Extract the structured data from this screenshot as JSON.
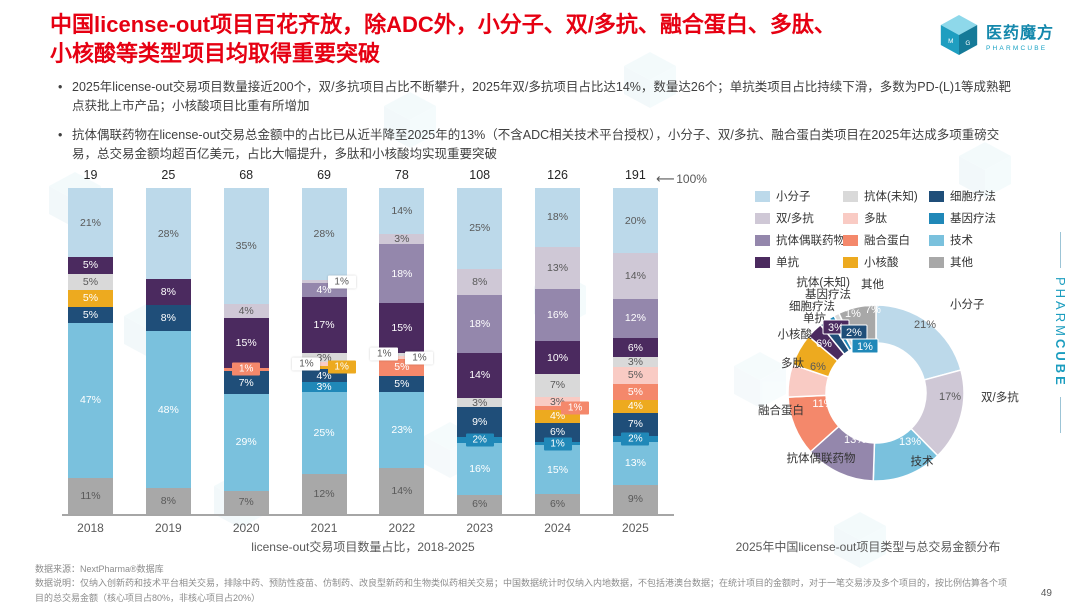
{
  "slide": {
    "title_line1": "中国license-out项目百花齐放，除ADC外，小分子、双/多抗、融合蛋白、多肽、",
    "title_line2": "小核酸等类型项目均取得重要突破",
    "title_color": "#e60012",
    "bullets": [
      "2025年license-out交易项目数量接近200个，双/多抗项目占比不断攀升，2025年双/多抗项目占比达14%，数量达26个；单抗类项目占比持续下滑，多数为PD-(L)1等成熟靶点获批上市产品；小核酸项目比重有所增加",
      "抗体偶联药物在license-out交易总金额中的占比已从近半降至2025年的13%（不含ADC相关技术平台授权），小分子、双/多抗、融合蛋白类项目在2025年达成多项重磅交易，总交易金额均超百亿美元，占比大幅提升，多肽和小核酸均实现重要突破"
    ],
    "logo": {
      "name": "医药魔方",
      "sub": "PHARMCUBE"
    },
    "side_brand": {
      "normal": "PHARM",
      "bold": "CUBE"
    },
    "footer_source": "数据来源：NextPharma®数据库",
    "footer_note": "数据说明：仅纳入创新药和技术平台相关交易，排除中药、预防性疫苗、仿制药、改良型新药和生物类似药相关交易；中国数据统计时仅纳入内地数据，不包括港澳台数据；在统计项目的金额时，对于一笔交易涉及多个项目的，按比例估算各个项目的总交易金额（核心项目占80%，非核心项目占20%）",
    "page_number": "49",
    "brand_teal": "#1b9dbf"
  },
  "categories": [
    {
      "label": "小分子",
      "color": "#bcd9ea",
      "text": "dark"
    },
    {
      "label": "双/多抗",
      "color": "#cfc8d6",
      "text": "dark"
    },
    {
      "label": "抗体偶联药物",
      "color": "#9487ac",
      "text": "white"
    },
    {
      "label": "单抗",
      "color": "#4b2a5f",
      "text": "white"
    },
    {
      "label": "抗体(未知)",
      "color": "#d9d9d9",
      "text": "dark"
    },
    {
      "label": "多肽",
      "color": "#f9cbc4",
      "text": "dark"
    },
    {
      "label": "融合蛋白",
      "color": "#f4886b",
      "text": "white"
    },
    {
      "label": "小核酸",
      "color": "#edaa1f",
      "text": "white"
    },
    {
      "label": "细胞疗法",
      "color": "#1f4e79",
      "text": "white"
    },
    {
      "label": "基因疗法",
      "color": "#2088b8",
      "text": "white"
    },
    {
      "label": "技术",
      "color": "#7ac1dd",
      "text": "white"
    },
    {
      "label": "其他",
      "color": "#a8a8a8",
      "text": "dark"
    }
  ],
  "chart_data": [
    {
      "type": "bar",
      "stacked": true,
      "title": "license-out交易项目数量占比，2018-2025",
      "axis_note": "100%",
      "ylim": [
        0,
        100
      ],
      "grid": false,
      "legend_position": "right",
      "years": [
        "2018",
        "2019",
        "2020",
        "2021",
        "2022",
        "2023",
        "2024",
        "2025"
      ],
      "totals": [
        19,
        25,
        68,
        69,
        78,
        108,
        126,
        191
      ],
      "bars": [
        {
          "year": "2018",
          "total": 19,
          "segments": [
            {
              "c": "小分子",
              "v": 21
            },
            {
              "c": "单抗",
              "v": 5
            },
            {
              "c": "抗体(未知)",
              "v": 5
            },
            {
              "c": "小核酸",
              "v": 5
            },
            {
              "c": "细胞疗法",
              "v": 5
            },
            {
              "c": "技术",
              "v": 47
            },
            {
              "c": "其他",
              "v": 11
            }
          ]
        },
        {
          "year": "2019",
          "total": 25,
          "segments": [
            {
              "c": "小分子",
              "v": 28
            },
            {
              "c": "单抗",
              "v": 8
            },
            {
              "c": "细胞疗法",
              "v": 8
            },
            {
              "c": "技术",
              "v": 48
            },
            {
              "c": "其他",
              "v": 8
            }
          ]
        },
        {
          "year": "2020",
          "total": 68,
          "segments": [
            {
              "c": "小分子",
              "v": 35
            },
            {
              "c": "双/多抗",
              "v": 4
            },
            {
              "c": "单抗",
              "v": 15
            },
            {
              "c": "融合蛋白",
              "v": 1,
              "side": "center"
            },
            {
              "c": "细胞疗法",
              "v": 7
            },
            {
              "c": "技术",
              "v": 29
            },
            {
              "c": "其他",
              "v": 7
            }
          ]
        },
        {
          "year": "2021",
          "total": 69,
          "segments": [
            {
              "c": "小分子",
              "v": 28
            },
            {
              "c": "双/多抗",
              "v": 1,
              "side": "right"
            },
            {
              "c": "抗体偶联药物",
              "v": 4
            },
            {
              "c": "单抗",
              "v": 17
            },
            {
              "c": "抗体(未知)",
              "v": 3
            },
            {
              "c": "多肽",
              "v": 1,
              "side": "left"
            },
            {
              "c": "小核酸",
              "v": 1,
              "side": "right"
            },
            {
              "c": "细胞疗法",
              "v": 4
            },
            {
              "c": "基因疗法",
              "v": 3
            },
            {
              "c": "技术",
              "v": 25
            },
            {
              "c": "其他",
              "v": 12
            }
          ]
        },
        {
          "year": "2022",
          "total": 78,
          "segments": [
            {
              "c": "小分子",
              "v": 14
            },
            {
              "c": "双/多抗",
              "v": 3
            },
            {
              "c": "抗体偶联药物",
              "v": 18
            },
            {
              "c": "单抗",
              "v": 15
            },
            {
              "c": "抗体(未知)",
              "v": 1,
              "side": "left"
            },
            {
              "c": "多肽",
              "v": 1,
              "side": "right"
            },
            {
              "c": "融合蛋白",
              "v": 5
            },
            {
              "c": "细胞疗法",
              "v": 5
            },
            {
              "c": "技术",
              "v": 23
            },
            {
              "c": "其他",
              "v": 14
            }
          ]
        },
        {
          "year": "2023",
          "total": 108,
          "segments": [
            {
              "c": "小分子",
              "v": 25
            },
            {
              "c": "双/多抗",
              "v": 8
            },
            {
              "c": "抗体偶联药物",
              "v": 18
            },
            {
              "c": "单抗",
              "v": 14
            },
            {
              "c": "抗体(未知)",
              "v": 3
            },
            {
              "c": "细胞疗法",
              "v": 9
            },
            {
              "c": "基因疗法",
              "v": 2,
              "side": "center"
            },
            {
              "c": "技术",
              "v": 16
            },
            {
              "c": "其他",
              "v": 6
            }
          ]
        },
        {
          "year": "2024",
          "total": 126,
          "segments": [
            {
              "c": "小分子",
              "v": 18
            },
            {
              "c": "双/多抗",
              "v": 13
            },
            {
              "c": "抗体偶联药物",
              "v": 16
            },
            {
              "c": "单抗",
              "v": 10
            },
            {
              "c": "抗体(未知)",
              "v": 7
            },
            {
              "c": "多肽",
              "v": 3
            },
            {
              "c": "融合蛋白",
              "v": 1,
              "side": "right"
            },
            {
              "c": "小核酸",
              "v": 4
            },
            {
              "c": "细胞疗法",
              "v": 6
            },
            {
              "c": "基因疗法",
              "v": 1,
              "side": "center"
            },
            {
              "c": "技术",
              "v": 15
            },
            {
              "c": "其他",
              "v": 6
            }
          ]
        },
        {
          "year": "2025",
          "total": 191,
          "segments": [
            {
              "c": "小分子",
              "v": 20
            },
            {
              "c": "双/多抗",
              "v": 14
            },
            {
              "c": "抗体偶联药物",
              "v": 12
            },
            {
              "c": "单抗",
              "v": 6
            },
            {
              "c": "抗体(未知)",
              "v": 3
            },
            {
              "c": "多肽",
              "v": 5
            },
            {
              "c": "融合蛋白",
              "v": 5
            },
            {
              "c": "小核酸",
              "v": 4
            },
            {
              "c": "细胞疗法",
              "v": 7
            },
            {
              "c": "基因疗法",
              "v": 2,
              "side": "center"
            },
            {
              "c": "技术",
              "v": 13
            },
            {
              "c": "其他",
              "v": 9
            }
          ]
        }
      ]
    },
    {
      "type": "pie",
      "subtype": "donut",
      "title": "2025年中国license-out项目类型与总交易金额分布",
      "segments": [
        {
          "c": "小分子",
          "v": 21
        },
        {
          "c": "双/多抗",
          "v": 17
        },
        {
          "c": "技术",
          "v": 13
        },
        {
          "c": "抗体偶联药物",
          "v": 13
        },
        {
          "c": "融合蛋白",
          "v": 11
        },
        {
          "c": "多肽",
          "v": 6
        },
        {
          "c": "小核酸",
          "v": 6
        },
        {
          "c": "单抗",
          "v": 3
        },
        {
          "c": "细胞疗法",
          "v": 2
        },
        {
          "c": "基因疗法",
          "v": 1
        },
        {
          "c": "抗体(未知)",
          "v": 1
        },
        {
          "c": "其他",
          "v": 7
        }
      ]
    }
  ]
}
